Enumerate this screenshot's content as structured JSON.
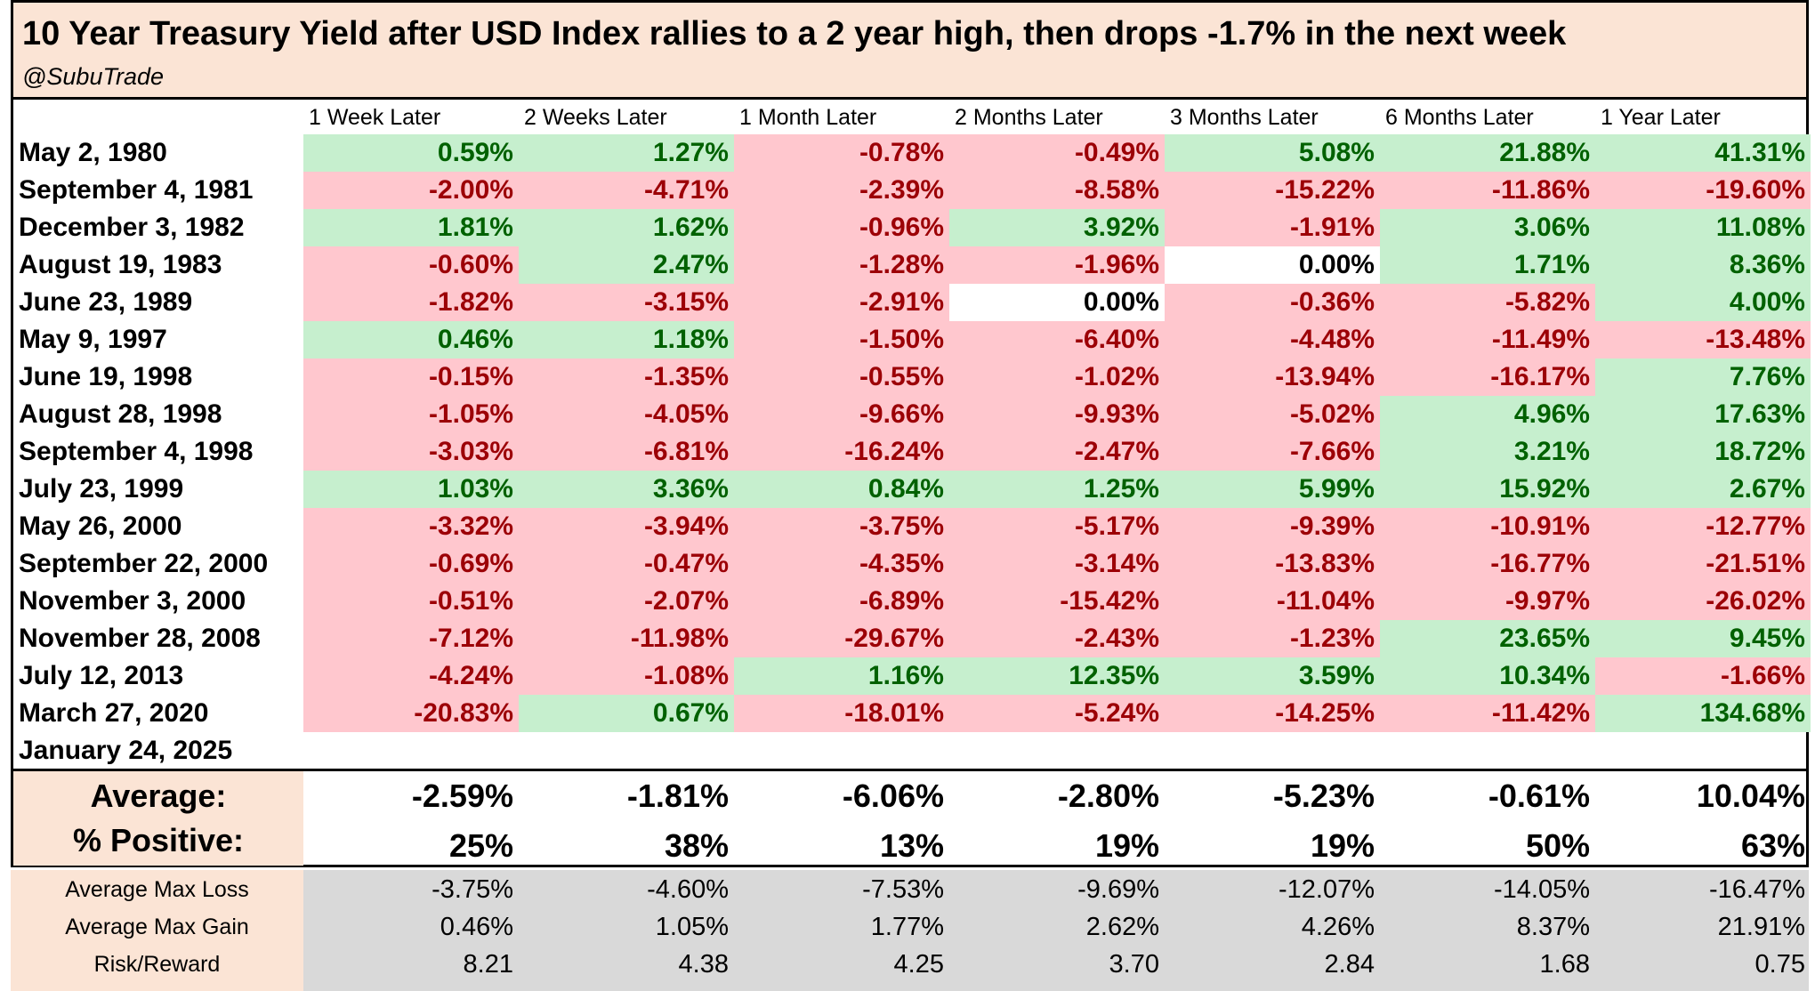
{
  "title": "10 Year Treasury Yield after USD Index rallies to a 2 year high, then drops -1.7% in the next week",
  "subtitle": "@SubuTrade",
  "columns": [
    "1 Week Later",
    "2 Weeks Later",
    "1 Month Later",
    "2 Months Later",
    "3 Months Later",
    "6 Months Later",
    "1 Year Later"
  ],
  "rows": [
    {
      "date": "May 2, 1980",
      "values": [
        "0.59%",
        "1.27%",
        "-0.78%",
        "-0.49%",
        "5.08%",
        "21.88%",
        "41.31%"
      ]
    },
    {
      "date": "September 4, 1981",
      "values": [
        "-2.00%",
        "-4.71%",
        "-2.39%",
        "-8.58%",
        "-15.22%",
        "-11.86%",
        "-19.60%"
      ]
    },
    {
      "date": "December 3, 1982",
      "values": [
        "1.81%",
        "1.62%",
        "-0.96%",
        "3.92%",
        "-1.91%",
        "3.06%",
        "11.08%"
      ]
    },
    {
      "date": "August 19, 1983",
      "values": [
        "-0.60%",
        "2.47%",
        "-1.28%",
        "-1.96%",
        "0.00%",
        "1.71%",
        "8.36%"
      ]
    },
    {
      "date": "June 23, 1989",
      "values": [
        "-1.82%",
        "-3.15%",
        "-2.91%",
        "0.00%",
        "-0.36%",
        "-5.82%",
        "4.00%"
      ]
    },
    {
      "date": "May 9, 1997",
      "values": [
        "0.46%",
        "1.18%",
        "-1.50%",
        "-6.40%",
        "-4.48%",
        "-11.49%",
        "-13.48%"
      ]
    },
    {
      "date": "June 19, 1998",
      "values": [
        "-0.15%",
        "-1.35%",
        "-0.55%",
        "-1.02%",
        "-13.94%",
        "-16.17%",
        "7.76%"
      ]
    },
    {
      "date": "August 28, 1998",
      "values": [
        "-1.05%",
        "-4.05%",
        "-9.66%",
        "-9.93%",
        "-5.02%",
        "4.96%",
        "17.63%"
      ]
    },
    {
      "date": "September 4, 1998",
      "values": [
        "-3.03%",
        "-6.81%",
        "-16.24%",
        "-2.47%",
        "-7.66%",
        "3.21%",
        "18.72%"
      ]
    },
    {
      "date": "July 23, 1999",
      "values": [
        "1.03%",
        "3.36%",
        "0.84%",
        "1.25%",
        "5.99%",
        "15.92%",
        "2.67%"
      ]
    },
    {
      "date": "May 26, 2000",
      "values": [
        "-3.32%",
        "-3.94%",
        "-3.75%",
        "-5.17%",
        "-9.39%",
        "-10.91%",
        "-12.77%"
      ]
    },
    {
      "date": "September 22, 2000",
      "values": [
        "-0.69%",
        "-0.47%",
        "-4.35%",
        "-3.14%",
        "-13.83%",
        "-16.77%",
        "-21.51%"
      ]
    },
    {
      "date": "November 3, 2000",
      "values": [
        "-0.51%",
        "-2.07%",
        "-6.89%",
        "-15.42%",
        "-11.04%",
        "-9.97%",
        "-26.02%"
      ]
    },
    {
      "date": "November 28, 2008",
      "values": [
        "-7.12%",
        "-11.98%",
        "-29.67%",
        "-2.43%",
        "-1.23%",
        "23.65%",
        "9.45%"
      ]
    },
    {
      "date": "July 12, 2013",
      "values": [
        "-4.24%",
        "-1.08%",
        "1.16%",
        "12.35%",
        "3.59%",
        "10.34%",
        "-1.66%"
      ]
    },
    {
      "date": "March 27, 2020",
      "values": [
        "-20.83%",
        "0.67%",
        "-18.01%",
        "-5.24%",
        "-14.25%",
        "-11.42%",
        "134.68%"
      ]
    },
    {
      "date": "January 24, 2025",
      "values": [
        "",
        "",
        "",
        "",
        "",
        "",
        ""
      ]
    }
  ],
  "summary": [
    {
      "label": "Average:",
      "values": [
        "-2.59%",
        "-1.81%",
        "-6.06%",
        "-2.80%",
        "-5.23%",
        "-0.61%",
        "10.04%"
      ]
    },
    {
      "label": "% Positive:",
      "values": [
        "25%",
        "38%",
        "13%",
        "19%",
        "19%",
        "50%",
        "63%"
      ]
    }
  ],
  "stats": [
    {
      "label": "Average Max Loss",
      "values": [
        "-3.75%",
        "-4.60%",
        "-7.53%",
        "-9.69%",
        "-12.07%",
        "-14.05%",
        "-16.47%"
      ]
    },
    {
      "label": "Average Max Gain",
      "values": [
        "0.46%",
        "1.05%",
        "1.77%",
        "2.62%",
        "4.26%",
        "8.37%",
        "21.91%"
      ]
    },
    {
      "label": "Risk/Reward",
      "values": [
        "8.21",
        "4.38",
        "4.25",
        "3.70",
        "2.84",
        "1.68",
        "0.75"
      ]
    }
  ],
  "colors": {
    "positive_bg": "#c6efce",
    "positive_text": "#006100",
    "negative_bg": "#ffc7ce",
    "negative_text": "#9c0006",
    "header_bg": "#fbe4d5",
    "stats_bg": "#d9d9d9"
  }
}
